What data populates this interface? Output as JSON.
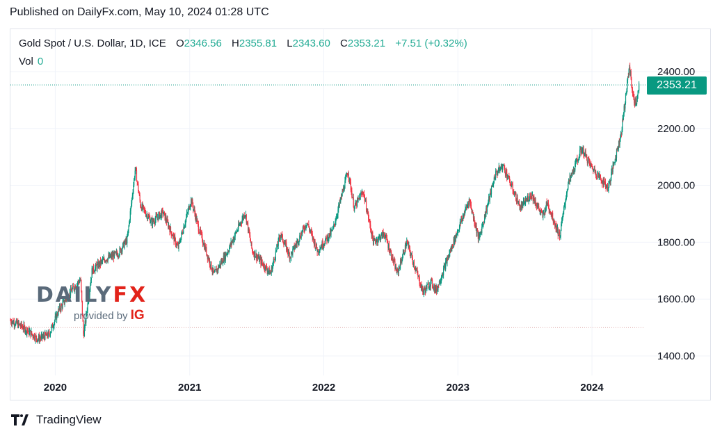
{
  "header": {
    "published": "Published on DailyFx.com, May 10, 2024 01:28 UTC"
  },
  "legend": {
    "symbol": "Gold Spot / U.S. Dollar, 1D, ICE",
    "open_label": "O",
    "open": "2346.56",
    "high_label": "H",
    "high": "2355.81",
    "low_label": "L",
    "low": "2343.60",
    "close_label": "C",
    "close": "2353.21",
    "change": "+7.51",
    "change_pct": "(+0.32%)",
    "vol_label": "Vol",
    "vol": "0"
  },
  "watermark": {
    "brand_a": "DAILY",
    "brand_b": "FX",
    "provided_by": "provided by",
    "ig": "IG"
  },
  "footer": {
    "brand": "TradingView"
  },
  "colors": {
    "up": "#089981",
    "down": "#f23645",
    "grid": "#f0f3fa",
    "last_line": "#089981",
    "ref_line": "#d9a0a0"
  },
  "chart_data": {
    "type": "candlestick",
    "title": "Gold Spot / U.S. Dollar, 1D, ICE",
    "ylim": [
      1350,
      2450
    ],
    "yticks": [
      "2400.00",
      "2200.00",
      "2000.00",
      "1800.00",
      "1600.00",
      "1400.00"
    ],
    "ytick_values": [
      2400,
      2200,
      2000,
      1800,
      1600,
      1400
    ],
    "xticks": [
      "2020",
      "2021",
      "2022",
      "2023",
      "2024"
    ],
    "xtick_dates": [
      "2020-01-01",
      "2021-01-01",
      "2022-01-01",
      "2023-01-01",
      "2024-01-01"
    ],
    "xlim": [
      "2019-09-01",
      "2024-05-20"
    ],
    "last_price": 2353.21,
    "last_price_label": "2353.21",
    "reference_line": 1500,
    "price_path": [
      [
        "2019-09-01",
        1525
      ],
      [
        "2019-10-01",
        1505
      ],
      [
        "2019-11-15",
        1460
      ],
      [
        "2019-12-15",
        1475
      ],
      [
        "2020-01-10",
        1560
      ],
      [
        "2020-02-20",
        1640
      ],
      [
        "2020-03-10",
        1670
      ],
      [
        "2020-03-18",
        1470
      ],
      [
        "2020-04-10",
        1700
      ],
      [
        "2020-05-15",
        1740
      ],
      [
        "2020-06-20",
        1760
      ],
      [
        "2020-07-15",
        1810
      ],
      [
        "2020-08-06",
        2060
      ],
      [
        "2020-08-20",
        1930
      ],
      [
        "2020-09-20",
        1870
      ],
      [
        "2020-10-20",
        1905
      ],
      [
        "2020-11-30",
        1780
      ],
      [
        "2021-01-05",
        1950
      ],
      [
        "2021-01-25",
        1850
      ],
      [
        "2021-03-08",
        1685
      ],
      [
        "2021-04-15",
        1770
      ],
      [
        "2021-06-01",
        1905
      ],
      [
        "2021-06-20",
        1770
      ],
      [
        "2021-08-09",
        1690
      ],
      [
        "2021-09-05",
        1830
      ],
      [
        "2021-10-01",
        1750
      ],
      [
        "2021-11-16",
        1870
      ],
      [
        "2021-12-15",
        1770
      ],
      [
        "2022-01-25",
        1840
      ],
      [
        "2022-03-08",
        2050
      ],
      [
        "2022-03-25",
        1920
      ],
      [
        "2022-04-18",
        1980
      ],
      [
        "2022-05-16",
        1800
      ],
      [
        "2022-06-15",
        1830
      ],
      [
        "2022-07-20",
        1690
      ],
      [
        "2022-08-15",
        1800
      ],
      [
        "2022-09-28",
        1625
      ],
      [
        "2022-10-20",
        1660
      ],
      [
        "2022-11-03",
        1630
      ],
      [
        "2022-12-20",
        1800
      ],
      [
        "2023-02-01",
        1950
      ],
      [
        "2023-02-27",
        1810
      ],
      [
        "2023-04-13",
        2040
      ],
      [
        "2023-05-04",
        2070
      ],
      [
        "2023-06-20",
        1920
      ],
      [
        "2023-07-20",
        1970
      ],
      [
        "2023-08-20",
        1890
      ],
      [
        "2023-09-01",
        1940
      ],
      [
        "2023-10-05",
        1820
      ],
      [
        "2023-10-27",
        2000
      ],
      [
        "2023-12-04",
        2130
      ],
      [
        "2023-12-28",
        2070
      ],
      [
        "2024-02-14",
        1990
      ],
      [
        "2024-03-01",
        2080
      ],
      [
        "2024-03-20",
        2180
      ],
      [
        "2024-04-12",
        2420
      ],
      [
        "2024-04-23",
        2300
      ],
      [
        "2024-05-01",
        2290
      ],
      [
        "2024-05-09",
        2353
      ]
    ]
  }
}
